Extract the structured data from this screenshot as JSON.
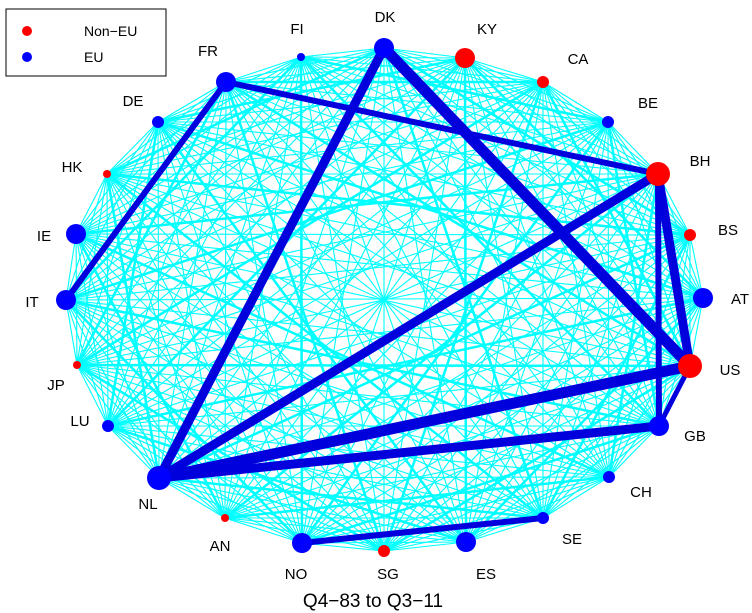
{
  "caption": "Q4−83 to Q3−11",
  "legend": [
    {
      "label": "Non−EU",
      "color": "#ff0000"
    },
    {
      "label": "EU",
      "color": "#0000ff"
    }
  ],
  "colors": {
    "edge_light": "#00ffff",
    "edge_strong": "#0000dd",
    "non_eu": "#ff0000",
    "eu": "#0000ff"
  },
  "nodes": [
    {
      "id": "DK",
      "group": "EU",
      "weight": 3
    },
    {
      "id": "KY",
      "group": "Non-EU",
      "weight": 3
    },
    {
      "id": "CA",
      "group": "Non-EU",
      "weight": 2
    },
    {
      "id": "BE",
      "group": "EU",
      "weight": 2
    },
    {
      "id": "BH",
      "group": "Non-EU",
      "weight": 4
    },
    {
      "id": "BS",
      "group": "Non-EU",
      "weight": 2
    },
    {
      "id": "AT",
      "group": "EU",
      "weight": 3
    },
    {
      "id": "US",
      "group": "Non-EU",
      "weight": 4
    },
    {
      "id": "GB",
      "group": "EU",
      "weight": 3
    },
    {
      "id": "CH",
      "group": "EU",
      "weight": 2
    },
    {
      "id": "SE",
      "group": "EU",
      "weight": 2
    },
    {
      "id": "ES",
      "group": "EU",
      "weight": 3
    },
    {
      "id": "SG",
      "group": "Non-EU",
      "weight": 2
    },
    {
      "id": "NO",
      "group": "EU",
      "weight": 3
    },
    {
      "id": "AN",
      "group": "Non-EU",
      "weight": 1
    },
    {
      "id": "NL",
      "group": "EU",
      "weight": 4
    },
    {
      "id": "LU",
      "group": "EU",
      "weight": 2
    },
    {
      "id": "JP",
      "group": "Non-EU",
      "weight": 1
    },
    {
      "id": "IT",
      "group": "EU",
      "weight": 3
    },
    {
      "id": "IE",
      "group": "EU",
      "weight": 3
    },
    {
      "id": "HK",
      "group": "Non-EU",
      "weight": 1
    },
    {
      "id": "DE",
      "group": "EU",
      "weight": 2
    },
    {
      "id": "FR",
      "group": "EU",
      "weight": 3
    },
    {
      "id": "FI",
      "group": "EU",
      "weight": 1
    }
  ],
  "strong_edges": [
    {
      "from": "DK",
      "to": "US",
      "weight": 4
    },
    {
      "from": "DK",
      "to": "NL",
      "weight": 3
    },
    {
      "from": "NL",
      "to": "US",
      "weight": 4
    },
    {
      "from": "NL",
      "to": "BH",
      "weight": 3
    },
    {
      "from": "NL",
      "to": "GB",
      "weight": 3
    },
    {
      "from": "BH",
      "to": "US",
      "weight": 3
    },
    {
      "from": "BH",
      "to": "GB",
      "weight": 2
    },
    {
      "from": "FR",
      "to": "BH",
      "weight": 2
    },
    {
      "from": "FR",
      "to": "IT",
      "weight": 2
    },
    {
      "from": "NO",
      "to": "SE",
      "weight": 2
    },
    {
      "from": "GB",
      "to": "US",
      "weight": 1
    }
  ]
}
